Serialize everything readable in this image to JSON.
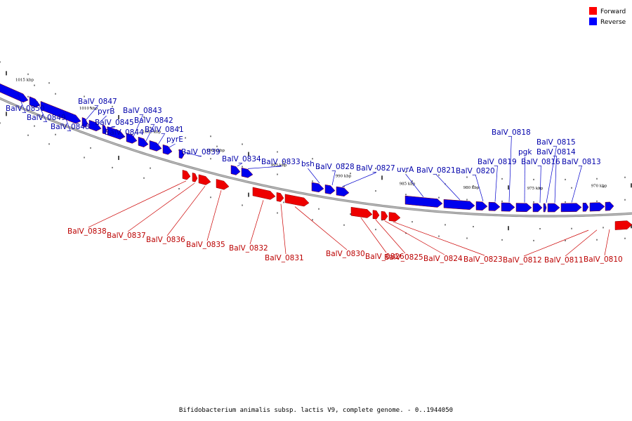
{
  "caption": "Bifidobacterium animalis subsp. lactis V9, complete genome. - 0..1944050",
  "legend": [
    {
      "label": "Forward",
      "color": "#ff0000"
    },
    {
      "label": "Reverse",
      "color": "#0000ff"
    }
  ],
  "colors": {
    "forward": "#ee0000",
    "reverse": "#0000ee",
    "backbone": "#888888"
  },
  "scale_labels": [
    "1015 kbp",
    "1010 kbp",
    "1005 kbp",
    "1000 kbp",
    "995 kbp",
    "990 kbp",
    "985 kbp",
    "980 kbp",
    "975 kbp",
    "970 kbp"
  ],
  "reverse_genes": [
    "BalV_0850",
    "BalV_0849",
    "BalV_0848",
    "BalV_0847",
    "pyrB",
    "BalV_0845",
    "BalV_0844",
    "BalV_0843",
    "BalV_0842",
    "BalV_0841",
    "pyrE",
    "BalV_0839",
    "BalV_0834",
    "BalV_0833",
    "bsh",
    "BalV_0828",
    "BalV_0827",
    "uvrA",
    "BalV_0821",
    "BalV_0820",
    "BalV_0819",
    "BalV_0818",
    "pgk",
    "BalV_0816",
    "BalV_0815",
    "BalV_0814",
    "BalV_0813"
  ],
  "forward_genes": [
    "BalV_0838",
    "BalV_0837",
    "BalV_0836",
    "BalV_0835",
    "BalV_0832",
    "BalV_0831",
    "BalV_0830",
    "BalV_0826",
    "BalV_0825",
    "BalV_0824",
    "BalV_0823",
    "BalV_0812",
    "BalV_0811",
    "BalV_0810"
  ]
}
